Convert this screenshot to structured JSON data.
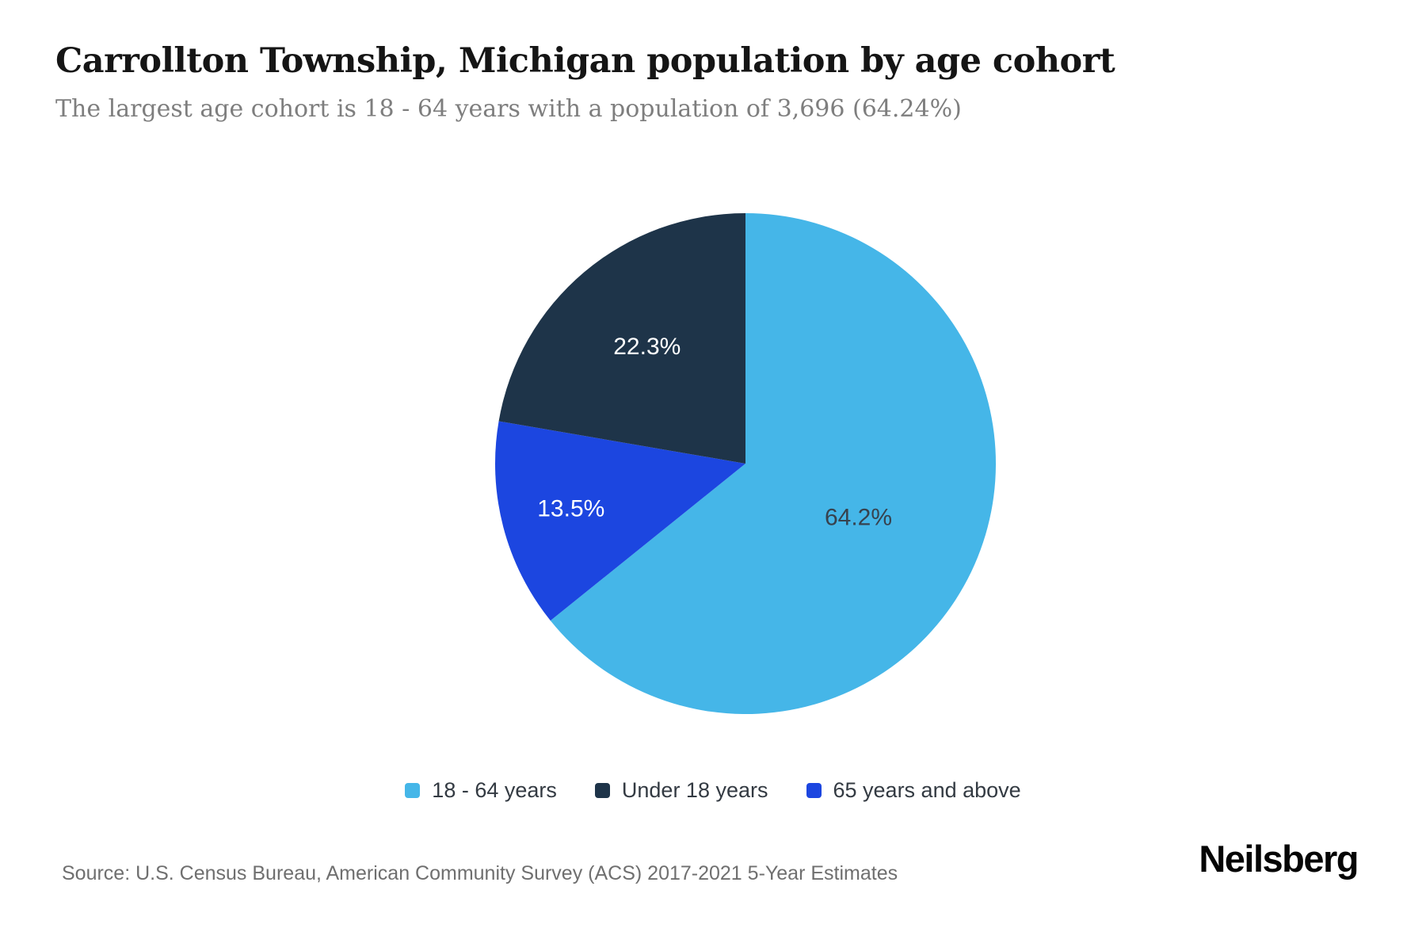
{
  "header": {
    "title": "Carrollton Township, Michigan population by age cohort",
    "subtitle": "The largest age cohort is 18 - 64 years with a population of 3,696 (64.24%)"
  },
  "chart_data": {
    "type": "pie",
    "title": "Carrollton Township, Michigan population by age cohort",
    "subtitle": "The largest age cohort is 18 - 64 years with a population of 3,696 (64.24%)",
    "slices": [
      {
        "label": "18 - 64 years",
        "value_pct": 64.24,
        "display_pct": "64.2%",
        "color": "#45b6e8",
        "label_color": "#37424e",
        "population": 3696
      },
      {
        "label": "Under 18 years",
        "value_pct": 22.3,
        "display_pct": "22.3%",
        "color": "#1e3449",
        "label_color": "#ffffff"
      },
      {
        "label": "65 years and above",
        "value_pct": 13.5,
        "display_pct": "13.5%",
        "color": "#1c46e0",
        "label_color": "#ffffff"
      }
    ],
    "draw_order": [
      0,
      2,
      1
    ],
    "start_angle_deg": 0,
    "direction": "clockwise",
    "legend_position": "bottom",
    "labels_inside": true
  },
  "footer": {
    "source": "Source: U.S. Census Bureau, American Community Survey (ACS) 2017-2021 5-Year Estimates",
    "brand": "Neilsberg"
  }
}
